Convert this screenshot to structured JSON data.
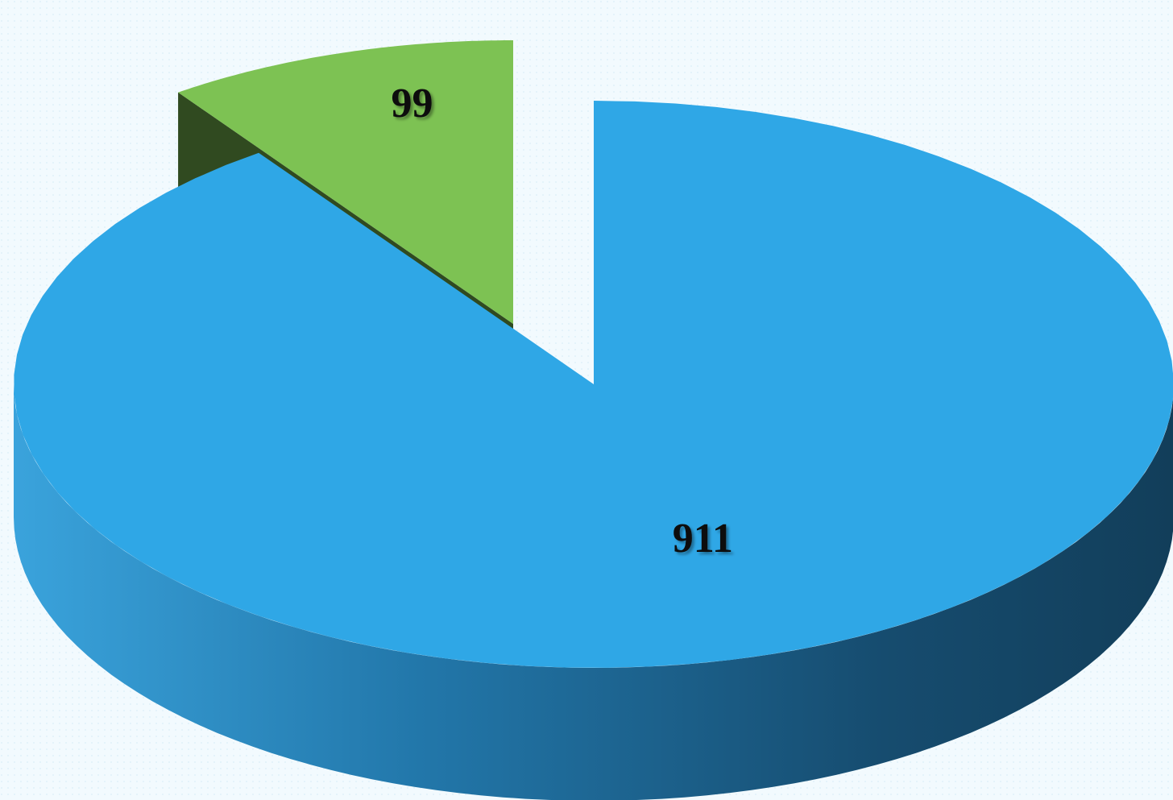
{
  "chart_data": {
    "type": "pie",
    "style": "3d-exploded",
    "slices": [
      {
        "label": "911",
        "value": 911,
        "color": "#2fa7e6",
        "exploded": false
      },
      {
        "label": "99",
        "value": 99,
        "color": "#7dc253",
        "exploded": true
      }
    ],
    "title": "",
    "legend": "none"
  }
}
